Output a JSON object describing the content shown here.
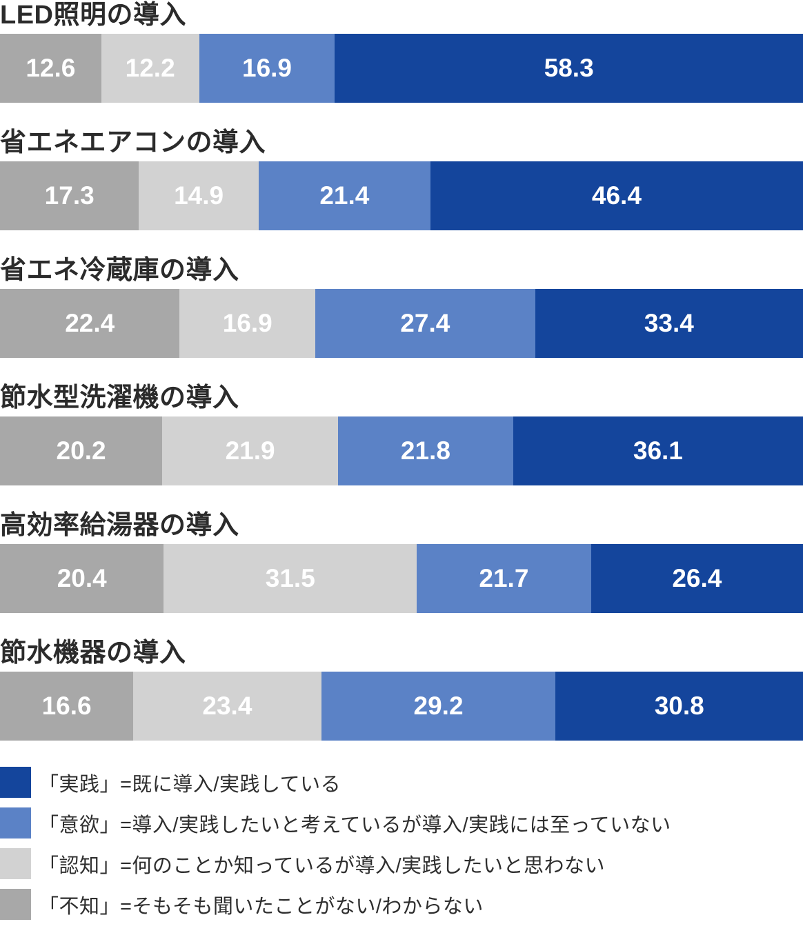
{
  "chart_data": {
    "type": "bar",
    "orientation": "horizontal-stacked",
    "unit": "percent",
    "xlim": [
      0,
      100
    ],
    "grid": false,
    "legend_position": "bottom",
    "series_order": [
      "不知",
      "認知",
      "意欲",
      "実践"
    ],
    "series_colors": {
      "不知": "#a8a8a8",
      "認知": "#d2d2d2",
      "意欲": "#5b82c6",
      "実践": "#14459c"
    },
    "categories": [
      "LED照明の導入",
      "省エネエアコンの導入",
      "省エネ冷蔵庫の導入",
      "節水型洗濯機の導入",
      "高効率給湯器の導入",
      "節水機器の導入"
    ],
    "rows": [
      {
        "title": "LED照明の導入",
        "values": [
          12.6,
          12.2,
          16.9,
          58.3
        ]
      },
      {
        "title": "省エネエアコンの導入",
        "values": [
          17.3,
          14.9,
          21.4,
          46.4
        ]
      },
      {
        "title": "省エネ冷蔵庫の導入",
        "values": [
          22.4,
          16.9,
          27.4,
          33.4
        ]
      },
      {
        "title": "節水型洗濯機の導入",
        "values": [
          20.2,
          21.9,
          21.8,
          36.1
        ]
      },
      {
        "title": "高効率給湯器の導入",
        "values": [
          20.4,
          31.5,
          21.7,
          26.4
        ]
      },
      {
        "title": "節水機器の導入",
        "values": [
          16.6,
          23.4,
          29.2,
          30.8
        ]
      }
    ],
    "legend": [
      {
        "key": "実践",
        "color": "#14459c",
        "label": "「実践」=既に導入/実践している"
      },
      {
        "key": "意欲",
        "color": "#5b82c6",
        "label": "「意欲」=導入/実践したいと考えているが導入/実践には至っていない"
      },
      {
        "key": "認知",
        "color": "#d2d2d2",
        "label": "「認知」=何のことか知っているが導入/実践したいと思わない"
      },
      {
        "key": "不知",
        "color": "#a8a8a8",
        "label": "「不知」=そもそも聞いたことがない/わからない"
      }
    ]
  }
}
